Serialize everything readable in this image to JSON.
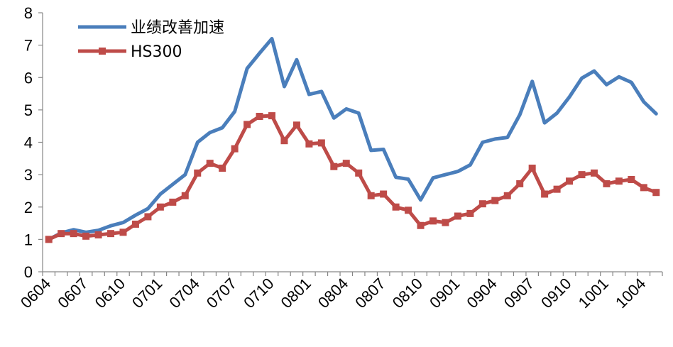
{
  "chart_data": {
    "type": "line",
    "title": "",
    "xlabel": "",
    "ylabel": "",
    "ylim": [
      0,
      8
    ],
    "yticks": [
      0,
      1,
      2,
      3,
      4,
      5,
      6,
      7,
      8
    ],
    "grid": false,
    "legend_position": "top-left",
    "categories": [
      "0604",
      "0605",
      "0606",
      "0607",
      "0608",
      "0609",
      "0610",
      "0611",
      "0612",
      "0701",
      "0702",
      "0703",
      "0704",
      "0705",
      "0706",
      "0707",
      "0708",
      "0709",
      "0710",
      "0711",
      "0712",
      "0801",
      "0802",
      "0803",
      "0804",
      "0805",
      "0806",
      "0807",
      "0808",
      "0809",
      "0810",
      "0811",
      "0812",
      "0901",
      "0902",
      "0903",
      "0904",
      "0905",
      "0906",
      "0907",
      "0908",
      "0909",
      "0910",
      "0911",
      "0912",
      "1001",
      "1002",
      "1003",
      "1004",
      "1005"
    ],
    "tick_labels": [
      "0604",
      "0607",
      "0610",
      "0701",
      "0704",
      "0707",
      "0710",
      "0801",
      "0804",
      "0807",
      "0810",
      "0901",
      "0904",
      "0907",
      "0910",
      "1001",
      "1004"
    ],
    "series": [
      {
        "name": "业绩改善加速",
        "color": "#4a7ebb",
        "marker": "none",
        "values": [
          1.0,
          1.2,
          1.3,
          1.22,
          1.28,
          1.42,
          1.52,
          1.75,
          1.95,
          2.4,
          2.7,
          3.0,
          4.0,
          4.3,
          4.45,
          4.95,
          6.28,
          6.75,
          7.2,
          5.72,
          6.55,
          5.48,
          5.57,
          4.75,
          5.03,
          4.9,
          3.75,
          3.78,
          2.92,
          2.86,
          2.22,
          2.9,
          3.0,
          3.1,
          3.3,
          4.0,
          4.1,
          4.15,
          4.85,
          5.88,
          4.6,
          4.9,
          5.4,
          5.98,
          6.2,
          5.78,
          6.02,
          5.85,
          5.25,
          4.88
        ]
      },
      {
        "name": "HS300",
        "color": "#be4b48",
        "marker": "square",
        "values": [
          1.0,
          1.18,
          1.18,
          1.1,
          1.14,
          1.18,
          1.22,
          1.47,
          1.7,
          2.0,
          2.15,
          2.35,
          3.05,
          3.35,
          3.2,
          3.8,
          4.55,
          4.8,
          4.82,
          4.05,
          4.53,
          3.95,
          3.98,
          3.25,
          3.35,
          3.05,
          2.35,
          2.4,
          2.0,
          1.9,
          1.43,
          1.57,
          1.52,
          1.72,
          1.8,
          2.1,
          2.2,
          2.35,
          2.72,
          3.2,
          2.4,
          2.55,
          2.8,
          3.0,
          3.05,
          2.72,
          2.8,
          2.85,
          2.6,
          2.45
        ]
      }
    ]
  }
}
